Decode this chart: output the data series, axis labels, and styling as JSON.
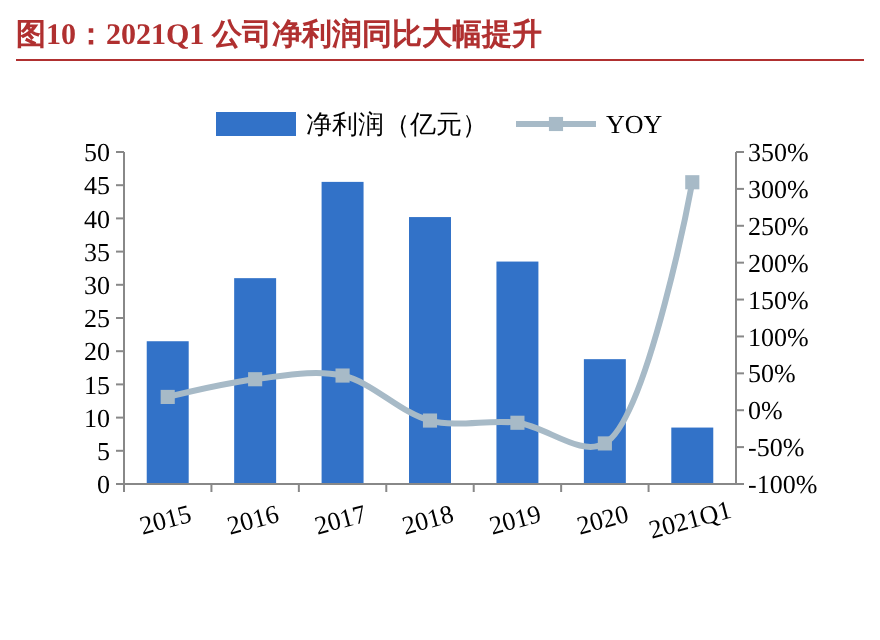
{
  "chart_data": {
    "type": "bar",
    "title": "图10：2021Q1 公司净利润同比大幅提升",
    "categories": [
      "2015",
      "2016",
      "2017",
      "2018",
      "2019",
      "2020",
      "2021Q1"
    ],
    "series": [
      {
        "name": "净利润（亿元）",
        "color": "#3272c8",
        "values": [
          21.5,
          31,
          45.5,
          40.2,
          33.5,
          18.8,
          8.5
        ]
      },
      {
        "name": "YOY",
        "type": "line",
        "axis": "y2",
        "color": "#a7bac7",
        "marker": "square",
        "values": [
          18,
          42,
          47,
          -14,
          -17,
          -45,
          309
        ]
      }
    ],
    "ylim": [
      0,
      50
    ],
    "yticks": [
      0,
      5,
      10,
      15,
      20,
      25,
      30,
      35,
      40,
      45,
      50
    ],
    "y2lim": [
      -100,
      350
    ],
    "y2ticks": [
      {
        "value": -100,
        "label": "-100%"
      },
      {
        "value": -50,
        "label": "-50%"
      },
      {
        "value": 0,
        "label": "0%"
      },
      {
        "value": 50,
        "label": "50%"
      },
      {
        "value": 100,
        "label": "100%"
      },
      {
        "value": 150,
        "label": "150%"
      },
      {
        "value": 200,
        "label": "200%"
      },
      {
        "value": 250,
        "label": "250%"
      },
      {
        "value": 300,
        "label": "300%"
      },
      {
        "value": 350,
        "label": "350%"
      }
    ],
    "legend": "top",
    "grid": false
  }
}
